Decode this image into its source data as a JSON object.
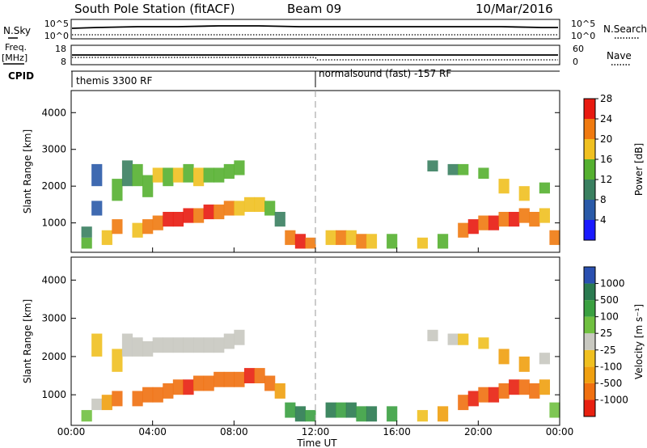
{
  "header": {
    "title": "South Pole Station (fitACF)",
    "beam": "Beam 09",
    "date": "10/Mar/2016"
  },
  "strips": {
    "nsky_label": "N.Sky",
    "nsearch_label": "N.Search",
    "nsky_ticks": [
      "10^5",
      "10^0"
    ],
    "nsearch_ticks": [
      "10^5",
      "10^0"
    ],
    "freq_label_1": "Freq.",
    "freq_label_2": "[MHz]",
    "freq_ticks": [
      "18",
      "8"
    ],
    "nave_label": "Nave",
    "nave_ticks": [
      "60",
      "0"
    ],
    "cpid_label": "CPID",
    "cpid_segments": [
      "themis 3300 RF",
      "normalsound (fast) -157 RF"
    ]
  },
  "chart_data": [
    {
      "type": "heatmap",
      "title": "",
      "xlabel": "Time UT",
      "ylabel": "Slant Range [km]",
      "x_ticks": [
        "00:00",
        "04:00",
        "08:00",
        "12:00",
        "16:00",
        "20:00",
        "00:00"
      ],
      "y_ticks": [
        1000,
        2000,
        3000,
        4000
      ],
      "ylim": [
        200,
        4600
      ],
      "colorbar_label": "Power [dB]",
      "colorbar_ticks": [
        "4",
        "8",
        "12",
        "16",
        "20",
        "24",
        "28"
      ],
      "colors": [
        "#1a1aff",
        "#2a5aa8",
        "#3a8060",
        "#55b030",
        "#f0c020",
        "#f07a10",
        "#e81a10"
      ],
      "series": [
        {
          "values": [
            [
              0.5,
              300,
              600,
              3
            ],
            [
              0.5,
              600,
              900,
              2
            ],
            [
              1,
              1200,
              1600,
              1
            ],
            [
              1,
              2000,
              2600,
              1
            ],
            [
              1.5,
              400,
              800,
              4
            ],
            [
              2,
              700,
              1100,
              5
            ],
            [
              2,
              1600,
              2200,
              3
            ],
            [
              2.5,
              2000,
              2700,
              2
            ],
            [
              3,
              600,
              1000,
              4
            ],
            [
              3,
              2000,
              2600,
              3
            ],
            [
              3.5,
              700,
              1100,
              5
            ],
            [
              3.5,
              1700,
              2300,
              3
            ],
            [
              4,
              800,
              1200,
              5
            ],
            [
              4,
              2100,
              2500,
              4
            ],
            [
              4.5,
              900,
              1300,
              6
            ],
            [
              4.5,
              2000,
              2500,
              3
            ],
            [
              5,
              900,
              1300,
              6
            ],
            [
              5,
              2100,
              2500,
              4
            ],
            [
              5.5,
              1000,
              1400,
              6
            ],
            [
              5.5,
              2100,
              2600,
              3
            ],
            [
              6,
              1000,
              1400,
              5
            ],
            [
              6,
              2000,
              2500,
              4
            ],
            [
              6.5,
              1100,
              1500,
              6
            ],
            [
              6.5,
              2100,
              2500,
              3
            ],
            [
              7,
              1100,
              1500,
              5
            ],
            [
              7,
              2100,
              2500,
              3
            ],
            [
              7.5,
              1200,
              1600,
              5
            ],
            [
              7.5,
              2200,
              2600,
              3
            ],
            [
              8,
              1200,
              1600,
              4
            ],
            [
              8,
              2300,
              2700,
              3
            ],
            [
              8.5,
              1300,
              1700,
              4
            ],
            [
              9,
              1300,
              1700,
              4
            ],
            [
              9.5,
              1200,
              1600,
              3
            ],
            [
              10,
              900,
              1300,
              2
            ],
            [
              10.5,
              400,
              800,
              5
            ],
            [
              11,
              300,
              700,
              6
            ],
            [
              11.5,
              300,
              600,
              5
            ],
            [
              12.5,
              400,
              800,
              4
            ],
            [
              13,
              400,
              800,
              5
            ],
            [
              13.5,
              400,
              800,
              4
            ],
            [
              14,
              300,
              700,
              5
            ],
            [
              14.5,
              300,
              700,
              4
            ],
            [
              15.5,
              300,
              700,
              3
            ],
            [
              17,
              300,
              600,
              4
            ],
            [
              17.5,
              2400,
              2700,
              2
            ],
            [
              18,
              300,
              700,
              3
            ],
            [
              18.5,
              2300,
              2600,
              2
            ],
            [
              19,
              600,
              1000,
              5
            ],
            [
              19,
              2300,
              2600,
              3
            ],
            [
              19.5,
              700,
              1100,
              6
            ],
            [
              20,
              800,
              1200,
              5
            ],
            [
              20,
              2200,
              2500,
              3
            ],
            [
              20.5,
              800,
              1200,
              6
            ],
            [
              21,
              900,
              1300,
              5
            ],
            [
              21,
              1800,
              2200,
              4
            ],
            [
              21.5,
              900,
              1300,
              6
            ],
            [
              22,
              1000,
              1400,
              5
            ],
            [
              22,
              1600,
              2000,
              4
            ],
            [
              22.5,
              900,
              1300,
              5
            ],
            [
              23,
              1000,
              1400,
              4
            ],
            [
              23,
              1800,
              2100,
              3
            ],
            [
              23.5,
              400,
              800,
              5
            ]
          ]
        }
      ]
    },
    {
      "type": "heatmap",
      "title": "",
      "xlabel": "Time UT",
      "ylabel": "Slant Range [km]",
      "x_ticks": [
        "00:00",
        "04:00",
        "08:00",
        "12:00",
        "16:00",
        "20:00",
        "00:00"
      ],
      "y_ticks": [
        1000,
        2000,
        3000,
        4000
      ],
      "ylim": [
        200,
        4600
      ],
      "colorbar_label": "Velocity [m s⁻¹]",
      "colorbar_ticks": [
        "1000",
        "500",
        "100",
        "25",
        "-25",
        "-100",
        "-500",
        "-1000"
      ],
      "colors": [
        "#2a50b0",
        "#2a7a50",
        "#3aa040",
        "#70c040",
        "#c8c8c0",
        "#f0c020",
        "#f0a010",
        "#f07010",
        "#e82010"
      ],
      "series": [
        {
          "values": [
            [
              0.5,
              300,
              600,
              3
            ],
            [
              1,
              600,
              900,
              4
            ],
            [
              1,
              2000,
              2600,
              5
            ],
            [
              1.5,
              600,
              1000,
              6
            ],
            [
              2,
              700,
              1100,
              7
            ],
            [
              2,
              1600,
              2200,
              5
            ],
            [
              2.5,
              2000,
              2600,
              4
            ],
            [
              3,
              700,
              1100,
              7
            ],
            [
              3,
              2000,
              2500,
              4
            ],
            [
              3.5,
              800,
              1200,
              7
            ],
            [
              3.5,
              2000,
              2400,
              4
            ],
            [
              4,
              800,
              1200,
              7
            ],
            [
              4,
              2100,
              2500,
              4
            ],
            [
              4.5,
              900,
              1300,
              7
            ],
            [
              4.5,
              2100,
              2500,
              4
            ],
            [
              5,
              1000,
              1400,
              7
            ],
            [
              5,
              2100,
              2500,
              4
            ],
            [
              5.5,
              1000,
              1400,
              8
            ],
            [
              5.5,
              2100,
              2500,
              4
            ],
            [
              6,
              1100,
              1500,
              7
            ],
            [
              6,
              2100,
              2500,
              4
            ],
            [
              6.5,
              1100,
              1500,
              7
            ],
            [
              6.5,
              2100,
              2500,
              4
            ],
            [
              7,
              1200,
              1600,
              7
            ],
            [
              7,
              2100,
              2500,
              4
            ],
            [
              7.5,
              1200,
              1600,
              7
            ],
            [
              7.5,
              2200,
              2600,
              4
            ],
            [
              8,
              1200,
              1600,
              7
            ],
            [
              8,
              2300,
              2700,
              4
            ],
            [
              8.5,
              1300,
              1700,
              8
            ],
            [
              9,
              1300,
              1700,
              7
            ],
            [
              9.5,
              1100,
              1500,
              7
            ],
            [
              10,
              900,
              1300,
              6
            ],
            [
              10.5,
              400,
              800,
              2
            ],
            [
              11,
              300,
              700,
              1
            ],
            [
              11.5,
              300,
              600,
              2
            ],
            [
              12.5,
              400,
              800,
              1
            ],
            [
              13,
              400,
              800,
              2
            ],
            [
              13.5,
              400,
              800,
              1
            ],
            [
              14,
              300,
              700,
              2
            ],
            [
              14.5,
              300,
              700,
              1
            ],
            [
              15.5,
              300,
              700,
              2
            ],
            [
              17,
              300,
              600,
              5
            ],
            [
              17.5,
              2400,
              2700,
              4
            ],
            [
              18,
              300,
              700,
              6
            ],
            [
              18.5,
              2300,
              2600,
              4
            ],
            [
              19,
              600,
              1000,
              7
            ],
            [
              19,
              2300,
              2600,
              5
            ],
            [
              19.5,
              700,
              1100,
              8
            ],
            [
              20,
              800,
              1200,
              7
            ],
            [
              20,
              2200,
              2500,
              5
            ],
            [
              20.5,
              800,
              1200,
              8
            ],
            [
              21,
              900,
              1300,
              7
            ],
            [
              21,
              1800,
              2200,
              6
            ],
            [
              21.5,
              1000,
              1400,
              8
            ],
            [
              22,
              1000,
              1400,
              7
            ],
            [
              22,
              1600,
              2000,
              6
            ],
            [
              22.5,
              900,
              1300,
              7
            ],
            [
              23,
              1000,
              1400,
              6
            ],
            [
              23,
              1800,
              2100,
              4
            ],
            [
              23.5,
              400,
              800,
              3
            ]
          ]
        }
      ]
    }
  ]
}
